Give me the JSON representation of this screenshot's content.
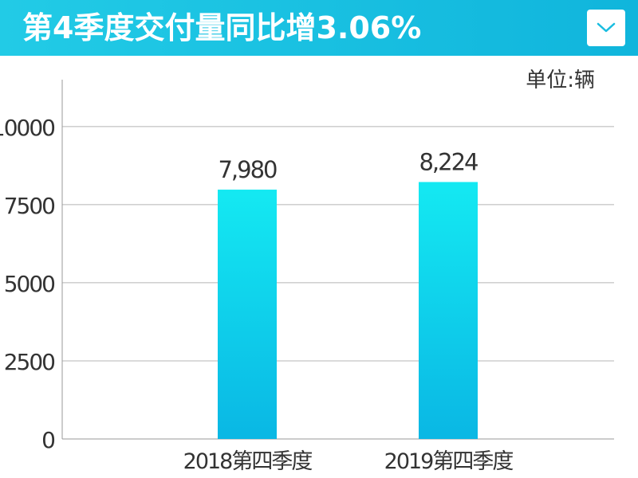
{
  "header": {
    "title": "第4季度交付量同比增3.06%",
    "collapse_icon": "chevron-down-icon"
  },
  "unit_label": "单位:辆",
  "colors": {
    "header_bg": "#18c2e2",
    "bar_top": "#14e9f2",
    "bar_bottom": "#0ab7e4",
    "grid": "#b5b5b5",
    "text": "#333333"
  },
  "chart_data": {
    "type": "bar",
    "categories": [
      "2018第四季度",
      "2019第四季度"
    ],
    "values": [
      7980,
      8224
    ],
    "value_labels": [
      "7,980",
      "8,224"
    ],
    "yticks": [
      "0",
      "2500",
      "5000",
      "7500",
      "10000"
    ],
    "ylim": [
      0,
      11500
    ],
    "grid": true
  }
}
